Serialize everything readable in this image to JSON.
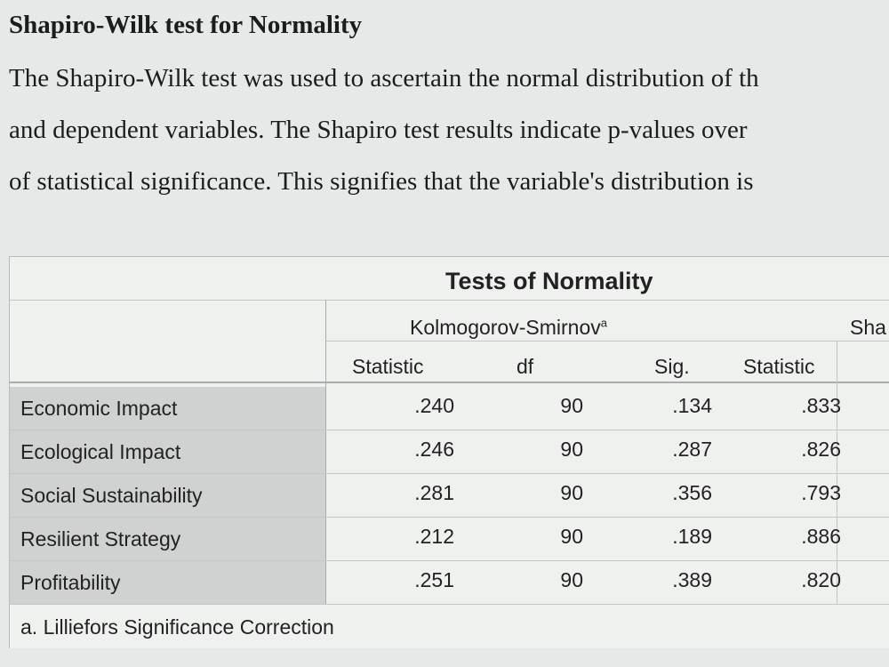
{
  "heading": "Shapiro-Wilk test for Normality",
  "paragraph": [
    "The Shapiro-Wilk test was used to ascertain the normal distribution of th",
    "and dependent variables. The Shapiro test results indicate p-values over",
    "of statistical significance. This signifies that the variable's distribution is"
  ],
  "table": {
    "title": "Tests of Normality",
    "groups": [
      {
        "name": "Kolmogorov-Smirnov",
        "note": "a"
      },
      {
        "name": "Sha"
      }
    ],
    "columns": [
      "Statistic",
      "df",
      "Sig.",
      "Statistic"
    ],
    "rows": [
      [
        "Economic Impact",
        ".240",
        "90",
        ".134",
        ".833"
      ],
      [
        "Ecological Impact",
        ".246",
        "90",
        ".287",
        ".826"
      ],
      [
        "Social Sustainability",
        ".281",
        "90",
        ".356",
        ".793"
      ],
      [
        "Resilient Strategy",
        ".212",
        "90",
        ".189",
        ".886"
      ],
      [
        "Profitability",
        ".251",
        "90",
        ".389",
        ".820"
      ]
    ],
    "footnote": "a. Lilliefors Significance Correction"
  }
}
